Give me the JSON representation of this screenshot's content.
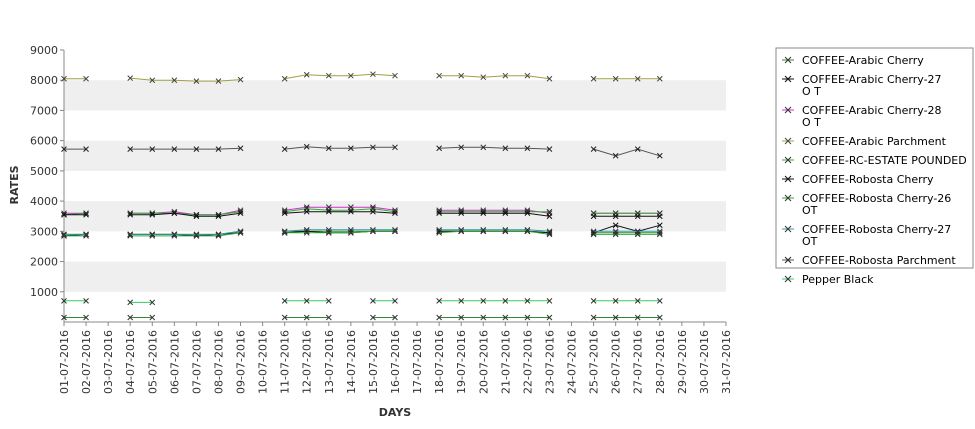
{
  "chart_data": {
    "type": "line",
    "title": "",
    "xlabel": "DAYS",
    "ylabel": "RATES",
    "ylim": [
      0,
      9000
    ],
    "yticks": [
      1000,
      2000,
      3000,
      4000,
      5000,
      6000,
      7000,
      8000,
      9000
    ],
    "grid": "alternating horizontal bands",
    "legend_position": "right",
    "categories": [
      "01-07-2016",
      "02-07-2016",
      "03-07-2016",
      "04-07-2016",
      "05-07-2016",
      "06-07-2016",
      "07-07-2016",
      "08-07-2016",
      "09-07-2016",
      "10-07-2016",
      "11-07-2016",
      "12-07-2016",
      "13-07-2016",
      "14-07-2016",
      "15-07-2016",
      "16-07-2016",
      "17-07-2016",
      "18-07-2016",
      "19-07-2016",
      "20-07-2016",
      "21-07-2016",
      "22-07-2016",
      "23-07-2016",
      "24-07-2016",
      "25-07-2016",
      "26-07-2016",
      "27-07-2016",
      "28-07-2016",
      "29-07-2016",
      "30-07-2016",
      "31-07-2016"
    ],
    "series": [
      {
        "name": "COFFEE-Arabic Cherry",
        "color": "#2e8b2e",
        "marker_color": "#333333",
        "values": [
          2900,
          2900,
          null,
          2900,
          2900,
          2900,
          2900,
          2900,
          3000,
          null,
          3000,
          3000,
          3000,
          3000,
          3000,
          3000,
          null,
          3000,
          3000,
          3000,
          3000,
          3000,
          2950,
          null,
          2950,
          2950,
          2950,
          2950,
          null,
          null,
          null
        ]
      },
      {
        "name": "COFFEE-Arabic Cherry-27 O T",
        "color": "#111111",
        "marker_color": "#111111",
        "values": [
          2850,
          2900,
          null,
          2900,
          2900,
          2900,
          2850,
          2900,
          2950,
          null,
          2950,
          3000,
          2950,
          2950,
          3000,
          3000,
          null,
          3000,
          3000,
          3000,
          3000,
          3000,
          2950,
          null,
          2950,
          3200,
          3000,
          3200,
          null,
          null,
          null
        ]
      },
      {
        "name": "COFFEE-Arabic Cherry-28 O T",
        "color": "#cc33cc",
        "marker_color": "#333333",
        "values": [
          3600,
          3600,
          null,
          3600,
          3600,
          3650,
          3550,
          3550,
          3700,
          null,
          3700,
          3800,
          3800,
          3800,
          3800,
          3700,
          null,
          3700,
          3700,
          3700,
          3700,
          3700,
          3600,
          null,
          3600,
          3600,
          3600,
          3600,
          null,
          null,
          null
        ]
      },
      {
        "name": "COFFEE-Arabic Parchment",
        "color": "#a0a040",
        "marker_color": "#444444",
        "values": [
          8050,
          8050,
          null,
          8070,
          8000,
          8000,
          7970,
          7970,
          8020,
          null,
          8050,
          8180,
          8150,
          8150,
          8200,
          8150,
          null,
          8150,
          8150,
          8100,
          8150,
          8150,
          8050,
          null,
          8050,
          8050,
          8050,
          8050,
          null,
          null,
          null
        ]
      },
      {
        "name": "COFFEE-RC-ESTATE POUNDED",
        "color": "#33aa33",
        "marker_color": "#333333",
        "values": [
          3550,
          3600,
          null,
          3600,
          3600,
          3600,
          3550,
          3550,
          3650,
          null,
          3650,
          3750,
          3700,
          3700,
          3750,
          3650,
          null,
          3650,
          3650,
          3650,
          3650,
          3650,
          3650,
          null,
          3600,
          3600,
          3600,
          3600,
          null,
          null,
          null
        ]
      },
      {
        "name": "COFFEE-Robosta Cherry",
        "color": "#111111",
        "marker_color": "#111111",
        "values": [
          3550,
          3550,
          null,
          3550,
          3550,
          3600,
          3500,
          3500,
          3600,
          null,
          3600,
          3650,
          3650,
          3650,
          3650,
          3600,
          null,
          3600,
          3600,
          3600,
          3600,
          3600,
          3500,
          null,
          3500,
          3500,
          3500,
          3500,
          null,
          null,
          null
        ]
      },
      {
        "name": "COFFEE-Robosta Cherry-26 OT",
        "color": "#33aa33",
        "marker_color": "#333333",
        "values": [
          2850,
          2850,
          null,
          2850,
          2850,
          2850,
          2850,
          2850,
          2950,
          null,
          2950,
          2950,
          2950,
          2950,
          3000,
          3000,
          null,
          2950,
          3000,
          3000,
          3000,
          3000,
          2900,
          null,
          2900,
          2900,
          2900,
          2900,
          null,
          null,
          null
        ]
      },
      {
        "name": "COFFEE-Robosta Cherry-27 OT",
        "color": "#3399aa",
        "marker_color": "#333333",
        "values": [
          2900,
          2900,
          null,
          2900,
          2900,
          2900,
          2900,
          2900,
          3000,
          null,
          3000,
          3050,
          3050,
          3050,
          3050,
          3050,
          null,
          3050,
          3050,
          3050,
          3050,
          3050,
          3000,
          null,
          3000,
          3000,
          3000,
          3000,
          null,
          null,
          null
        ]
      },
      {
        "name": "COFFEE-Robosta Parchment",
        "color": "#555555",
        "marker_color": "#222222",
        "values": [
          5720,
          5720,
          null,
          5720,
          5720,
          5720,
          5720,
          5720,
          5750,
          null,
          5720,
          5800,
          5750,
          5750,
          5780,
          5780,
          null,
          5750,
          5780,
          5780,
          5750,
          5750,
          5720,
          null,
          5720,
          5500,
          5720,
          5500,
          null,
          null,
          null
        ]
      },
      {
        "name": "Pepper Black",
        "color": "#33cc66",
        "marker_color": "#333333",
        "values": [
          700,
          700,
          null,
          650,
          650,
          null,
          null,
          null,
          null,
          null,
          700,
          700,
          700,
          null,
          700,
          700,
          null,
          700,
          700,
          700,
          700,
          700,
          700,
          null,
          700,
          700,
          700,
          700,
          null,
          null,
          null
        ]
      },
      {
        "name": "",
        "color": "#2e8b2e",
        "marker_color": "#333333",
        "values": [
          150,
          150,
          null,
          150,
          150,
          null,
          null,
          null,
          null,
          null,
          150,
          150,
          150,
          null,
          150,
          150,
          null,
          150,
          150,
          150,
          150,
          150,
          150,
          null,
          150,
          150,
          150,
          150,
          null,
          null,
          null
        ]
      }
    ]
  }
}
